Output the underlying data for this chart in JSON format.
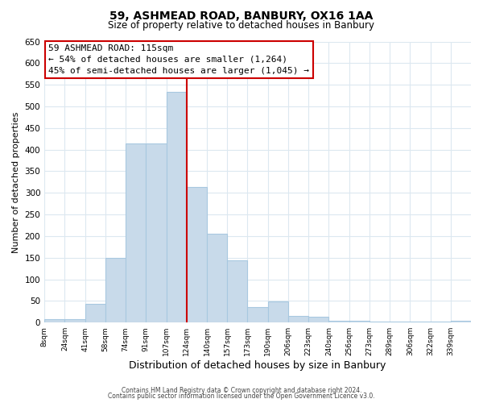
{
  "title": "59, ASHMEAD ROAD, BANBURY, OX16 1AA",
  "subtitle": "Size of property relative to detached houses in Banbury",
  "xlabel": "Distribution of detached houses by size in Banbury",
  "ylabel": "Number of detached properties",
  "bin_labels": [
    "8sqm",
    "24sqm",
    "41sqm",
    "58sqm",
    "74sqm",
    "91sqm",
    "107sqm",
    "124sqm",
    "140sqm",
    "157sqm",
    "173sqm",
    "190sqm",
    "206sqm",
    "223sqm",
    "240sqm",
    "256sqm",
    "273sqm",
    "289sqm",
    "306sqm",
    "322sqm",
    "339sqm"
  ],
  "bar_heights": [
    8,
    8,
    44,
    150,
    415,
    415,
    533,
    313,
    205,
    143,
    35,
    49,
    15,
    14,
    5,
    5,
    3,
    3,
    3,
    3,
    5
  ],
  "bar_color": "#c8daea",
  "bar_edge_color": "#a8c8e0",
  "vline_x_index": 7,
  "vline_color": "#cc0000",
  "annotation_title": "59 ASHMEAD ROAD: 115sqm",
  "annotation_line1": "← 54% of detached houses are smaller (1,264)",
  "annotation_line2": "45% of semi-detached houses are larger (1,045) →",
  "annotation_box_color": "#ffffff",
  "annotation_box_edge": "#cc0000",
  "ylim": [
    0,
    650
  ],
  "yticks": [
    0,
    50,
    100,
    150,
    200,
    250,
    300,
    350,
    400,
    450,
    500,
    550,
    600,
    650
  ],
  "footer1": "Contains HM Land Registry data © Crown copyright and database right 2024.",
  "footer2": "Contains public sector information licensed under the Open Government Licence v3.0.",
  "bg_color": "#ffffff",
  "grid_color": "#dce8f0"
}
